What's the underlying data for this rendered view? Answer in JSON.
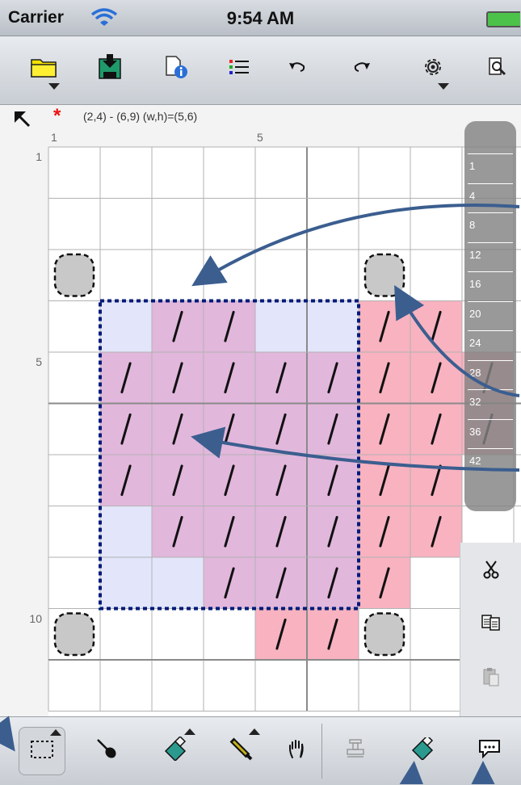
{
  "status_bar": {
    "carrier": "Carrier",
    "time": "9:54 AM"
  },
  "toolbar": {
    "items": [
      {
        "name": "open-folder-icon",
        "has_menu": true
      },
      {
        "name": "save-icon",
        "has_menu": false
      },
      {
        "name": "document-info-icon",
        "has_menu": false
      },
      {
        "name": "list-icon",
        "has_menu": false
      },
      {
        "name": "undo-icon",
        "has_menu": false
      },
      {
        "name": "redo-icon",
        "has_menu": false
      },
      {
        "name": "settings-gear-icon",
        "has_menu": true
      },
      {
        "name": "preview-icon",
        "has_menu": false
      }
    ]
  },
  "ruler": {
    "selection_info": "(2,4) - (6,9) (w,h)=(5,6)",
    "modified_marker": "*",
    "col_labels": [
      "1",
      "5"
    ],
    "row_labels": [
      "1",
      "5",
      "10"
    ]
  },
  "row_scroller": {
    "labels": [
      "1",
      "4",
      "8",
      "12",
      "16",
      "20",
      "24",
      "28",
      "32",
      "36",
      "42"
    ]
  },
  "grid": {
    "columns": 9,
    "rows": 11,
    "colors": {
      "lavender": "#e3e6fa",
      "pink": "#e2b7dc",
      "red": "#f8b2c0",
      "gray": "#c8c8c8",
      "line": "#b2b2b2",
      "selection": "#001a7a"
    },
    "selection": {
      "col": 2,
      "row": 4,
      "w": 5,
      "h": 6
    },
    "cells": [
      {
        "r": 4,
        "c": 2,
        "t": "lavender"
      },
      {
        "r": 4,
        "c": 3,
        "t": "pink"
      },
      {
        "r": 4,
        "c": 4,
        "t": "pink"
      },
      {
        "r": 4,
        "c": 5,
        "t": "lavender"
      },
      {
        "r": 4,
        "c": 6,
        "t": "lavender"
      },
      {
        "r": 4,
        "c": 7,
        "t": "red"
      },
      {
        "r": 4,
        "c": 8,
        "t": "red"
      },
      {
        "r": 5,
        "c": 2,
        "t": "pink"
      },
      {
        "r": 5,
        "c": 3,
        "t": "pink"
      },
      {
        "r": 5,
        "c": 4,
        "t": "pink"
      },
      {
        "r": 5,
        "c": 5,
        "t": "pink"
      },
      {
        "r": 5,
        "c": 6,
        "t": "pink"
      },
      {
        "r": 5,
        "c": 7,
        "t": "red"
      },
      {
        "r": 5,
        "c": 8,
        "t": "red"
      },
      {
        "r": 5,
        "c": 9,
        "t": "red"
      },
      {
        "r": 6,
        "c": 2,
        "t": "pink"
      },
      {
        "r": 6,
        "c": 3,
        "t": "pink"
      },
      {
        "r": 6,
        "c": 4,
        "t": "pink"
      },
      {
        "r": 6,
        "c": 5,
        "t": "pink"
      },
      {
        "r": 6,
        "c": 6,
        "t": "pink"
      },
      {
        "r": 6,
        "c": 7,
        "t": "red"
      },
      {
        "r": 6,
        "c": 8,
        "t": "red"
      },
      {
        "r": 6,
        "c": 9,
        "t": "red"
      },
      {
        "r": 7,
        "c": 2,
        "t": "pink"
      },
      {
        "r": 7,
        "c": 3,
        "t": "pink"
      },
      {
        "r": 7,
        "c": 4,
        "t": "pink"
      },
      {
        "r": 7,
        "c": 5,
        "t": "pink"
      },
      {
        "r": 7,
        "c": 6,
        "t": "pink"
      },
      {
        "r": 7,
        "c": 7,
        "t": "red"
      },
      {
        "r": 7,
        "c": 8,
        "t": "red"
      },
      {
        "r": 8,
        "c": 2,
        "t": "lavender"
      },
      {
        "r": 8,
        "c": 3,
        "t": "pink"
      },
      {
        "r": 8,
        "c": 4,
        "t": "pink"
      },
      {
        "r": 8,
        "c": 5,
        "t": "pink"
      },
      {
        "r": 8,
        "c": 6,
        "t": "pink"
      },
      {
        "r": 8,
        "c": 7,
        "t": "red"
      },
      {
        "r": 8,
        "c": 8,
        "t": "red"
      },
      {
        "r": 9,
        "c": 2,
        "t": "lavender"
      },
      {
        "r": 9,
        "c": 3,
        "t": "lavender"
      },
      {
        "r": 9,
        "c": 4,
        "t": "pink"
      },
      {
        "r": 9,
        "c": 5,
        "t": "pink"
      },
      {
        "r": 9,
        "c": 6,
        "t": "pink"
      },
      {
        "r": 9,
        "c": 7,
        "t": "red"
      },
      {
        "r": 10,
        "c": 5,
        "t": "red"
      },
      {
        "r": 10,
        "c": 6,
        "t": "red"
      }
    ],
    "slashes": [
      [
        4,
        3
      ],
      [
        4,
        4
      ],
      [
        4,
        7
      ],
      [
        4,
        8
      ],
      [
        5,
        2
      ],
      [
        5,
        3
      ],
      [
        5,
        4
      ],
      [
        5,
        5
      ],
      [
        5,
        6
      ],
      [
        5,
        7
      ],
      [
        5,
        8
      ],
      [
        5,
        9
      ],
      [
        6,
        2
      ],
      [
        6,
        3
      ],
      [
        6,
        4
      ],
      [
        6,
        5
      ],
      [
        6,
        6
      ],
      [
        6,
        7
      ],
      [
        6,
        8
      ],
      [
        6,
        9
      ],
      [
        7,
        2
      ],
      [
        7,
        3
      ],
      [
        7,
        4
      ],
      [
        7,
        5
      ],
      [
        7,
        6
      ],
      [
        7,
        7
      ],
      [
        7,
        8
      ],
      [
        8,
        3
      ],
      [
        8,
        4
      ],
      [
        8,
        5
      ],
      [
        8,
        6
      ],
      [
        8,
        7
      ],
      [
        8,
        8
      ],
      [
        9,
        4
      ],
      [
        9,
        5
      ],
      [
        9,
        6
      ],
      [
        9,
        7
      ],
      [
        10,
        5
      ],
      [
        10,
        6
      ]
    ],
    "handles": [
      [
        3,
        1
      ],
      [
        3,
        7
      ],
      [
        10,
        1
      ],
      [
        10,
        7
      ]
    ]
  },
  "side_panel": {
    "items": [
      "cut-icon",
      "copy-icon",
      "paste-icon",
      "comment-icon"
    ]
  },
  "bottom_toolbar": {
    "items": [
      {
        "name": "select-rect-tool",
        "selected": true,
        "has_menu": true
      },
      {
        "name": "eyedropper-tool",
        "selected": false,
        "has_menu": false
      },
      {
        "name": "eraser-tool",
        "selected": false,
        "has_menu": true
      },
      {
        "name": "pen-tool",
        "selected": false,
        "has_menu": true
      },
      {
        "name": "hand-tool",
        "selected": false,
        "has_menu": false
      },
      {
        "name": "stamp-tool",
        "selected": false,
        "has_menu": false
      },
      {
        "name": "eraser-button",
        "selected": false,
        "has_menu": false
      },
      {
        "name": "comment-button",
        "selected": false,
        "has_menu": false
      }
    ]
  }
}
